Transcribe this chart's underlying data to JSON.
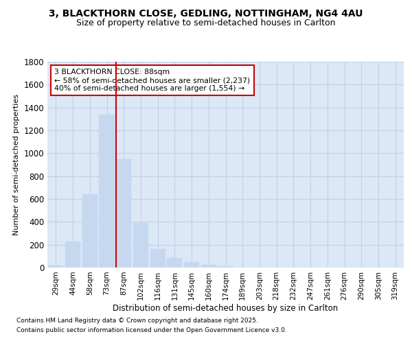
{
  "title1": "3, BLACKTHORN CLOSE, GEDLING, NOTTINGHAM, NG4 4AU",
  "title2": "Size of property relative to semi-detached houses in Carlton",
  "xlabel": "Distribution of semi-detached houses by size in Carlton",
  "ylabel": "Number of semi-detached properties",
  "categories": [
    "29sqm",
    "44sqm",
    "58sqm",
    "73sqm",
    "87sqm",
    "102sqm",
    "116sqm",
    "131sqm",
    "145sqm",
    "160sqm",
    "174sqm",
    "189sqm",
    "203sqm",
    "218sqm",
    "232sqm",
    "247sqm",
    "261sqm",
    "276sqm",
    "290sqm",
    "305sqm",
    "319sqm"
  ],
  "values": [
    20,
    230,
    640,
    1340,
    950,
    390,
    165,
    85,
    50,
    25,
    15,
    0,
    0,
    0,
    0,
    0,
    0,
    0,
    0,
    0,
    0
  ],
  "bar_color": "#c5d8f0",
  "vline_color": "#cc0000",
  "vline_pos": 4,
  "annotation_title": "3 BLACKTHORN CLOSE: 88sqm",
  "annotation_line2": "← 58% of semi-detached houses are smaller (2,237)",
  "annotation_line3": "40% of semi-detached houses are larger (1,554) →",
  "annotation_box_color": "#cc0000",
  "ylim": [
    0,
    1800
  ],
  "yticks": [
    0,
    200,
    400,
    600,
    800,
    1000,
    1200,
    1400,
    1600,
    1800
  ],
  "footnote1": "Contains HM Land Registry data © Crown copyright and database right 2025.",
  "footnote2": "Contains public sector information licensed under the Open Government Licence v3.0.",
  "bg_color": "#ffffff",
  "plot_bg_color": "#dce8f6",
  "grid_color": "#c0d0e8"
}
